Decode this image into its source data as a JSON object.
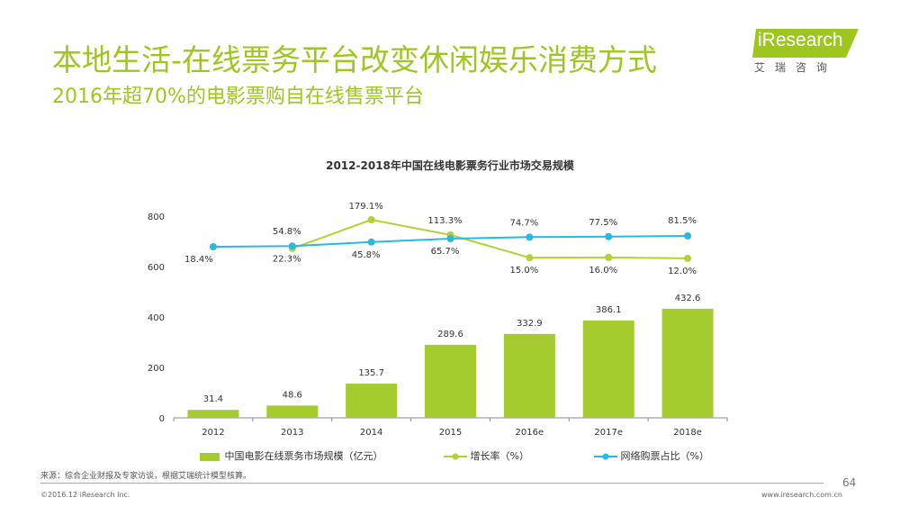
{
  "header": {
    "title": "本地生活-在线票务平台改变休闲娱乐消费方式",
    "subtitle": "2016年超70%的电影票购自在线售票平台"
  },
  "logo": {
    "name": "iResearch",
    "sub": "艾瑞咨询"
  },
  "chart_data": {
    "type": "bar",
    "title": "2012-2018年中国在线电影票务行业市场交易规模",
    "categories": [
      "2012",
      "2013",
      "2014",
      "2015",
      "2016e",
      "2017e",
      "2018e"
    ],
    "ylim": [
      0,
      800
    ],
    "yticks": [
      0,
      200,
      400,
      600,
      800
    ],
    "grid": false,
    "legend_position": "bottom",
    "series": [
      {
        "name": "中国电影在线票务市场规模（亿元）",
        "type": "bar",
        "color": "#a4cc2e",
        "values": [
          31.4,
          48.6,
          135.7,
          289.6,
          332.9,
          386.1,
          432.6
        ],
        "labels": [
          "31.4",
          "48.6",
          "135.7",
          "289.6",
          "332.9",
          "386.1",
          "432.6"
        ]
      },
      {
        "name": "增长率（%）",
        "type": "line",
        "color": "#b2d235",
        "values": [
          null,
          54.8,
          179.1,
          113.3,
          15.0,
          16.0,
          12.0
        ],
        "labels": [
          "",
          "54.8%",
          "179.1%",
          "113.3%",
          "15.0%",
          "16.0%",
          "12.0%"
        ]
      },
      {
        "name": "网络购票占比（%）",
        "type": "line",
        "color": "#29b8e4",
        "values": [
          18.4,
          22.3,
          45.8,
          65.7,
          74.7,
          77.5,
          81.5
        ],
        "labels": [
          "18.4%",
          "22.3%",
          "45.8%",
          "65.7%",
          "74.7%",
          "77.5%",
          "81.5%"
        ]
      }
    ]
  },
  "footer": {
    "source": "来源：综合企业财报及专家访谈，根据艾瑞统计模型核算。",
    "page": "64",
    "copyright": "©2016.12 iResearch Inc.",
    "website": "www.iresearch.com.cn"
  }
}
